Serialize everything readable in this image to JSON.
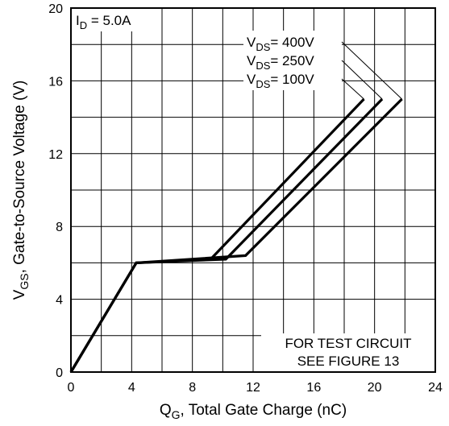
{
  "chart_data": {
    "type": "line",
    "xlabel": {
      "main": "Q",
      "sub": "G",
      "rest": ", Total Gate Charge (nC)"
    },
    "ylabel": {
      "main": "V",
      "sub": "GS",
      "rest": ", Gate-to-Source Voltage (V)"
    },
    "xlim": [
      0,
      24
    ],
    "ylim": [
      0,
      20
    ],
    "x_ticks": [
      "0",
      "4",
      "8",
      "12",
      "16",
      "20",
      "24"
    ],
    "y_ticks": [
      "0",
      "4",
      "8",
      "12",
      "16",
      "20"
    ],
    "grid": true,
    "legend": {
      "main": "I",
      "sub": "D",
      "rest": " = 5.0A"
    },
    "note": [
      "FOR TEST CIRCUIT",
      "SEE FIGURE 13"
    ],
    "series": [
      {
        "name": "V_DS = 100V",
        "label": {
          "main": "V",
          "sub": "DS",
          "rest": "= 100V"
        },
        "x": [
          0,
          4.3,
          9.2,
          19.3
        ],
        "y": [
          0,
          6.0,
          6.2,
          15.0
        ]
      },
      {
        "name": "V_DS = 250V",
        "label": {
          "main": "V",
          "sub": "DS",
          "rest": "= 250V"
        },
        "x": [
          0,
          4.3,
          10.2,
          20.5
        ],
        "y": [
          0,
          6.0,
          6.2,
          15.0
        ]
      },
      {
        "name": "V_DS = 400V",
        "label": {
          "main": "V",
          "sub": "DS",
          "rest": "= 400V"
        },
        "x": [
          0,
          4.3,
          11.5,
          21.8
        ],
        "y": [
          0,
          6.0,
          6.4,
          15.0
        ]
      }
    ]
  }
}
